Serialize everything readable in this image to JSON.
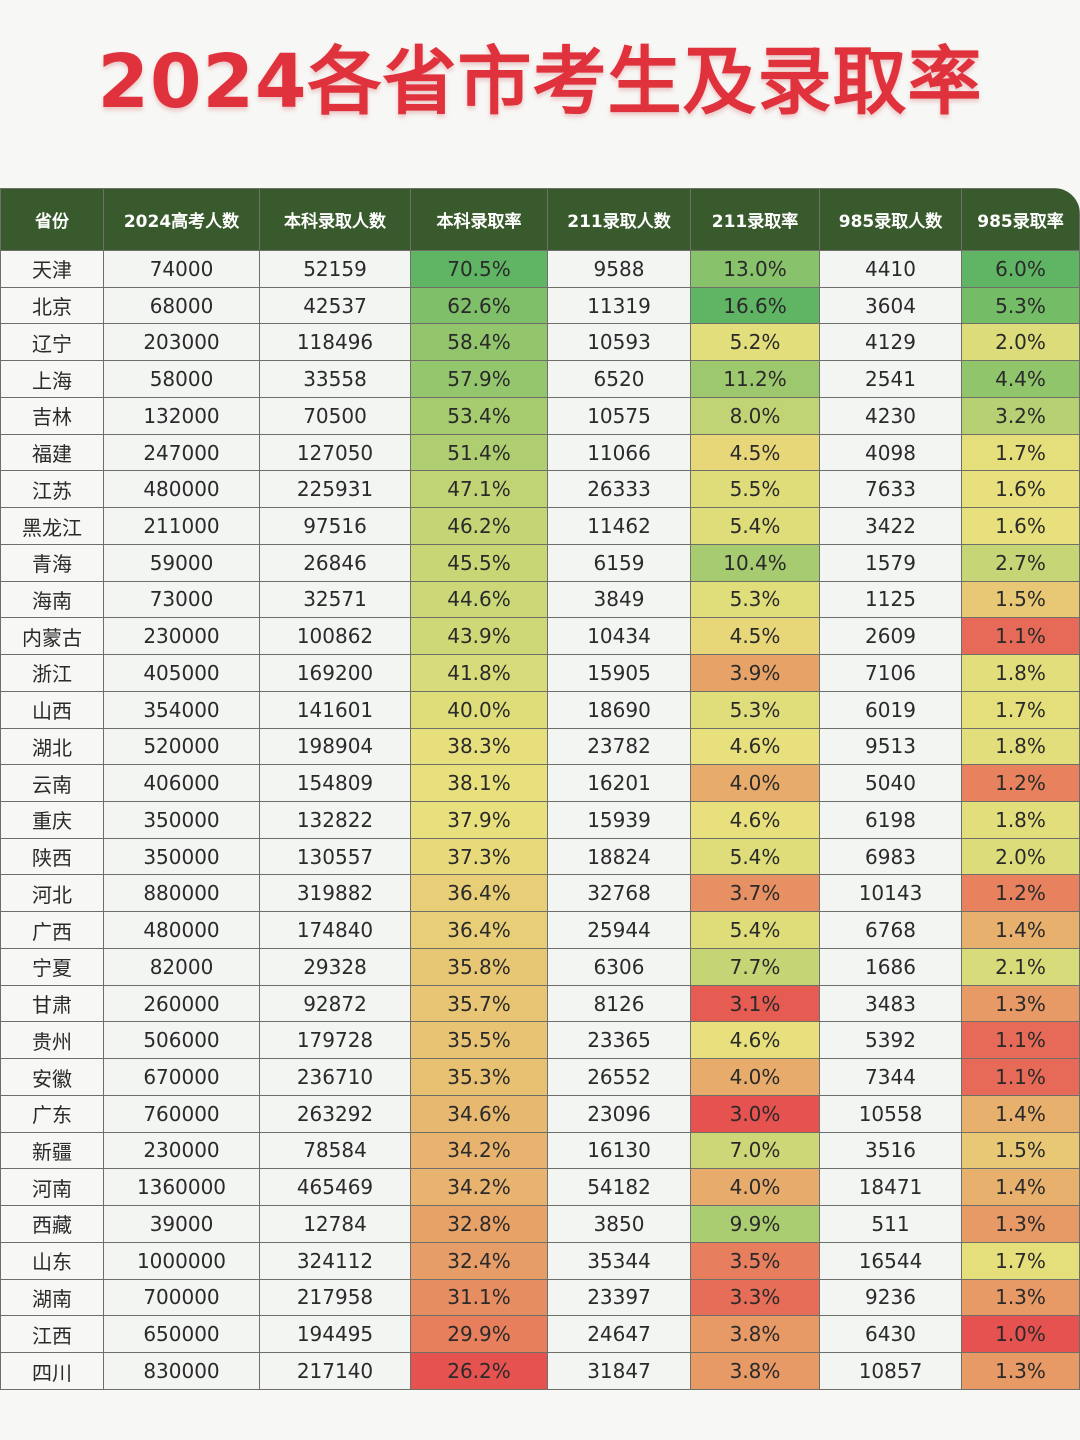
{
  "title": "2024各省市考生及录取率",
  "table": {
    "headers": [
      "省份",
      "2024高考人数",
      "本科录取人数",
      "本科录取率",
      "211录取人数",
      "211录取率",
      "985录取人数",
      "985录取率"
    ],
    "rows": [
      [
        "天津",
        "74000",
        "52159",
        "70.5%",
        "9588",
        "13.0%",
        "4410",
        "6.0%"
      ],
      [
        "北京",
        "68000",
        "42537",
        "62.6%",
        "11319",
        "16.6%",
        "3604",
        "5.3%"
      ],
      [
        "辽宁",
        "203000",
        "118496",
        "58.4%",
        "10593",
        "5.2%",
        "4129",
        "2.0%"
      ],
      [
        "上海",
        "58000",
        "33558",
        "57.9%",
        "6520",
        "11.2%",
        "2541",
        "4.4%"
      ],
      [
        "吉林",
        "132000",
        "70500",
        "53.4%",
        "10575",
        "8.0%",
        "4230",
        "3.2%"
      ],
      [
        "福建",
        "247000",
        "127050",
        "51.4%",
        "11066",
        "4.5%",
        "4098",
        "1.7%"
      ],
      [
        "江苏",
        "480000",
        "225931",
        "47.1%",
        "26333",
        "5.5%",
        "7633",
        "1.6%"
      ],
      [
        "黑龙江",
        "211000",
        "97516",
        "46.2%",
        "11462",
        "5.4%",
        "3422",
        "1.6%"
      ],
      [
        "青海",
        "59000",
        "26846",
        "45.5%",
        "6159",
        "10.4%",
        "1579",
        "2.7%"
      ],
      [
        "海南",
        "73000",
        "32571",
        "44.6%",
        "3849",
        "5.3%",
        "1125",
        "1.5%"
      ],
      [
        "内蒙古",
        "230000",
        "100862",
        "43.9%",
        "10434",
        "4.5%",
        "2609",
        "1.1%"
      ],
      [
        "浙江",
        "405000",
        "169200",
        "41.8%",
        "15905",
        "3.9%",
        "7106",
        "1.8%"
      ],
      [
        "山西",
        "354000",
        "141601",
        "40.0%",
        "18690",
        "5.3%",
        "6019",
        "1.7%"
      ],
      [
        "湖北",
        "520000",
        "198904",
        "38.3%",
        "23782",
        "4.6%",
        "9513",
        "1.8%"
      ],
      [
        "云南",
        "406000",
        "154809",
        "38.1%",
        "16201",
        "4.0%",
        "5040",
        "1.2%"
      ],
      [
        "重庆",
        "350000",
        "132822",
        "37.9%",
        "15939",
        "4.6%",
        "6198",
        "1.8%"
      ],
      [
        "陕西",
        "350000",
        "130557",
        "37.3%",
        "18824",
        "5.4%",
        "6983",
        "2.0%"
      ],
      [
        "河北",
        "880000",
        "319882",
        "36.4%",
        "32768",
        "3.7%",
        "10143",
        "1.2%"
      ],
      [
        "广西",
        "480000",
        "174840",
        "36.4%",
        "25944",
        "5.4%",
        "6768",
        "1.4%"
      ],
      [
        "宁夏",
        "82000",
        "29328",
        "35.8%",
        "6306",
        "7.7%",
        "1686",
        "2.1%"
      ],
      [
        "甘肃",
        "260000",
        "92872",
        "35.7%",
        "8126",
        "3.1%",
        "3483",
        "1.3%"
      ],
      [
        "贵州",
        "506000",
        "179728",
        "35.5%",
        "23365",
        "4.6%",
        "5392",
        "1.1%"
      ],
      [
        "安徽",
        "670000",
        "236710",
        "35.3%",
        "26552",
        "4.0%",
        "7344",
        "1.1%"
      ],
      [
        "广东",
        "760000",
        "263292",
        "34.6%",
        "23096",
        "3.0%",
        "10558",
        "1.4%"
      ],
      [
        "新疆",
        "230000",
        "78584",
        "34.2%",
        "16130",
        "7.0%",
        "3516",
        "1.5%"
      ],
      [
        "河南",
        "1360000",
        "465469",
        "34.2%",
        "54182",
        "4.0%",
        "18471",
        "1.4%"
      ],
      [
        "西藏",
        "39000",
        "12784",
        "32.8%",
        "3850",
        "9.9%",
        "511",
        "1.3%"
      ],
      [
        "山东",
        "1000000",
        "324112",
        "32.4%",
        "35344",
        "3.5%",
        "16544",
        "1.7%"
      ],
      [
        "湖南",
        "700000",
        "217958",
        "31.1%",
        "23397",
        "3.3%",
        "9236",
        "1.3%"
      ],
      [
        "江西",
        "650000",
        "194495",
        "29.9%",
        "24647",
        "3.8%",
        "6430",
        "1.0%"
      ],
      [
        "四川",
        "830000",
        "217140",
        "26.2%",
        "31847",
        "3.8%",
        "10857",
        "1.3%"
      ]
    ]
  },
  "colors": {
    "title": "#e0323c",
    "header_bg": "#385a2c",
    "scale_high": "#5fb563",
    "scale_mid": "#e8e07c",
    "scale_low": "#e6524f"
  }
}
